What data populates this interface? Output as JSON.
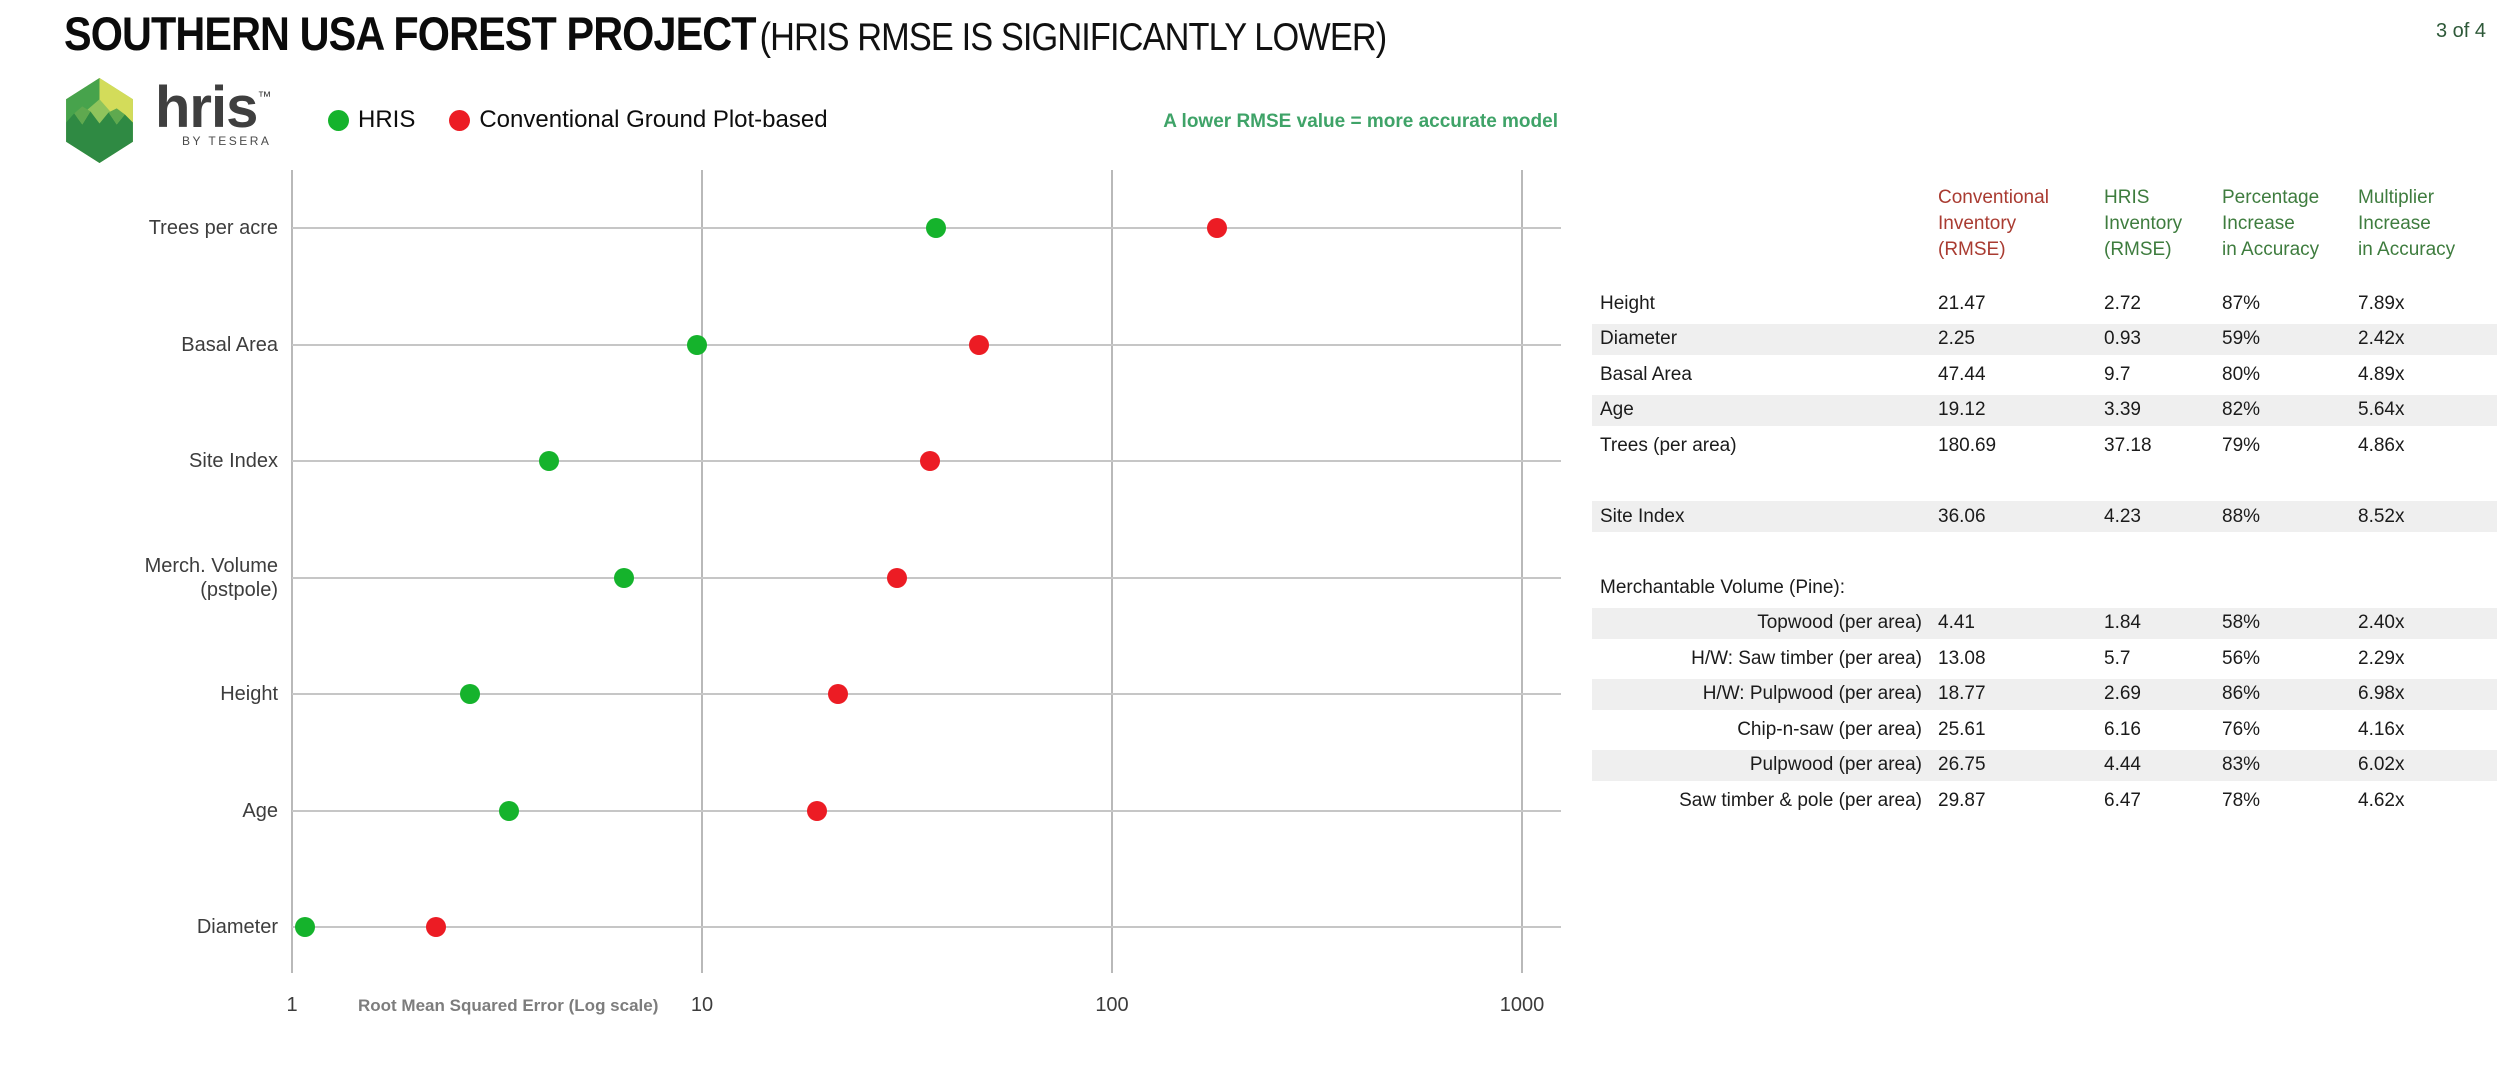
{
  "header": {
    "title_main": "SOUTHERN USA FOREST PROJECT",
    "title_sub": "(HRIS RMSE IS SIGNIFICANTLY LOWER)",
    "page_indicator": "3 of 4"
  },
  "logo": {
    "wordmark": "hris",
    "trademark": "™",
    "byline": "BY TESERA"
  },
  "legend": {
    "items": [
      {
        "label": "HRIS",
        "color": "#15B32C"
      },
      {
        "label": "Conventional Ground Plot-based",
        "color": "#EC1C24"
      }
    ]
  },
  "annotation": {
    "text": "A lower RMSE value = more accurate model",
    "color": "#3FA368"
  },
  "chart_data": {
    "type": "scatter",
    "subtype": "horizontal-dot-plot",
    "x_scale": "log",
    "xlim": [
      1,
      1000
    ],
    "x_ticks": [
      1,
      10,
      100,
      1000
    ],
    "xlabel": "Root Mean Squared Error (Log scale)",
    "grid": true,
    "legend_position": "top",
    "categories": [
      "Trees per acre",
      "Basal Area",
      "Site Index",
      "Merch. Volume\n(pstpole)",
      "Height",
      "Age",
      "Diameter"
    ],
    "series": [
      {
        "name": "HRIS",
        "color": "#15B32C",
        "values": [
          37.18,
          9.7,
          4.23,
          6.47,
          2.72,
          3.39,
          0.93
        ]
      },
      {
        "name": "Conventional Ground Plot-based",
        "color": "#EC1C24",
        "values": [
          180.69,
          47.44,
          36.06,
          29.87,
          21.47,
          19.12,
          2.25
        ]
      }
    ]
  },
  "table": {
    "columns": [
      {
        "label": "Conventional\nInventory\n(RMSE)",
        "color": "#A93B31"
      },
      {
        "label": "HRIS\nInventory\n(RMSE)",
        "color": "#3E7C3E"
      },
      {
        "label": "Percentage\nIncrease\nin Accuracy",
        "color": "#3E7C3E"
      },
      {
        "label": "Multiplier\nIncrease\nin Accuracy",
        "color": "#3E7C3E"
      }
    ],
    "rows": [
      {
        "label": "Height",
        "values": [
          "21.47",
          "2.72",
          "87%",
          "7.89x"
        ],
        "shaded": false,
        "indent": false
      },
      {
        "label": "Diameter",
        "values": [
          "2.25",
          "0.93",
          "59%",
          "2.42x"
        ],
        "shaded": true,
        "indent": false
      },
      {
        "label": "Basal Area",
        "values": [
          "47.44",
          "9.7",
          "80%",
          "4.89x"
        ],
        "shaded": false,
        "indent": false
      },
      {
        "label": "Age",
        "values": [
          "19.12",
          "3.39",
          "82%",
          "5.64x"
        ],
        "shaded": true,
        "indent": false
      },
      {
        "label": "Trees (per area)",
        "values": [
          "180.69",
          "37.18",
          "79%",
          "4.86x"
        ],
        "shaded": false,
        "indent": false
      },
      {
        "label": "",
        "values": [
          "",
          "",
          "",
          ""
        ],
        "blank": true
      },
      {
        "label": "Site Index",
        "values": [
          "36.06",
          "4.23",
          "88%",
          "8.52x"
        ],
        "shaded": true,
        "indent": false
      },
      {
        "label": "",
        "values": [
          "",
          "",
          "",
          ""
        ],
        "blank": true
      },
      {
        "label": "Merchantable Volume (Pine):",
        "values": [
          "",
          "",
          "",
          ""
        ],
        "section": true
      },
      {
        "label": "Topwood (per area)",
        "values": [
          "4.41",
          "1.84",
          "58%",
          "2.40x"
        ],
        "shaded": true,
        "indent": true
      },
      {
        "label": "H/W: Saw timber (per area)",
        "values": [
          "13.08",
          "5.7",
          "56%",
          "2.29x"
        ],
        "shaded": false,
        "indent": true
      },
      {
        "label": "H/W: Pulpwood (per area)",
        "values": [
          "18.77",
          "2.69",
          "86%",
          "6.98x"
        ],
        "shaded": true,
        "indent": true
      },
      {
        "label": "Chip-n-saw (per area)",
        "values": [
          "25.61",
          "6.16",
          "76%",
          "4.16x"
        ],
        "shaded": false,
        "indent": true
      },
      {
        "label": "Pulpwood (per area)",
        "values": [
          "26.75",
          "4.44",
          "83%",
          "6.02x"
        ],
        "shaded": true,
        "indent": true
      },
      {
        "label": "Saw timber & pole (per area)",
        "values": [
          "29.87",
          "6.47",
          "78%",
          "4.62x"
        ],
        "shaded": false,
        "indent": true
      }
    ]
  }
}
